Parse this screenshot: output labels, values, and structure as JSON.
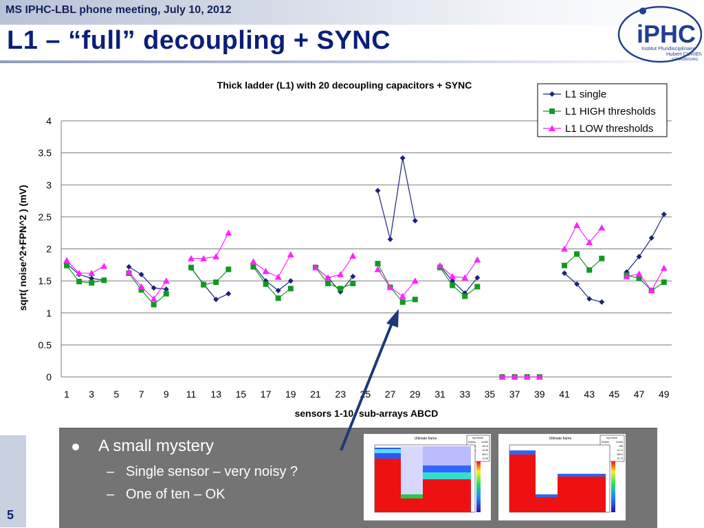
{
  "header": {
    "text": "MS   IPHC-LBL phone meeting, July 10, 2012"
  },
  "title": "L1 – “full” decoupling + SYNC",
  "logo": {
    "main": "iPHC",
    "line1": "Institut Pluridisciplinaire",
    "line2": "Hubert CURIEN",
    "line3": "STRASBOURG"
  },
  "page_number": "5",
  "bullets": {
    "main": "A small mystery",
    "sub": [
      "Single sensor – very noisy ?",
      "One of ten – OK"
    ]
  },
  "thumbnails": {
    "left": {
      "title": "Ultimate frame",
      "stats_title": "my frame",
      "stats_labels": [
        "Entries",
        "Mean x",
        "Mean y",
        "RMS x",
        "RMS y"
      ],
      "stats_values": [
        "31200",
        "431.6",
        "15.95",
        "309.2",
        "11.05"
      ]
    },
    "right": {
      "title": "Ultimate frame",
      "stats_title": "my frame",
      "stats_labels": [
        "Entries",
        "Mean x",
        "Mean y",
        "RMS x",
        "RMS y"
      ],
      "stats_values": [
        "31200",
        "435",
        "14.72",
        "285.9",
        "10.73"
      ]
    }
  },
  "colors": {
    "single": "#1a237e",
    "high": "#119922",
    "low": "#ff22ff",
    "arrow": "#1c3a78",
    "bottom_box": "#747474"
  },
  "chart_data": {
    "type": "line",
    "title": "Thick ladder (L1) with 20 decoupling capacitors + SYNC",
    "xlabel": "sensors 1-10, sub-arrays ABCD",
    "ylabel": "sqrt( noise^2+FPN^2 ) (mV)",
    "ylim": [
      0,
      4
    ],
    "yticks": [
      "0",
      "0.5",
      "1",
      "1.5",
      "2",
      "2.5",
      "3",
      "3.5",
      "4"
    ],
    "xticks": [
      "1",
      "3",
      "5",
      "7",
      "9",
      "11",
      "13",
      "15",
      "17",
      "19",
      "21",
      "23",
      "25",
      "27",
      "29",
      "31",
      "33",
      "35",
      "37",
      "39",
      "41",
      "43",
      "45",
      "47",
      "49"
    ],
    "x_range": [
      1,
      50
    ],
    "legend_position": "top-right",
    "grid": "horizontal",
    "series": [
      {
        "name": "L1 single",
        "marker": "diamond",
        "segments": [
          [
            [
              1,
              1.77
            ],
            [
              2,
              1.6
            ],
            [
              3,
              1.54
            ],
            [
              4,
              1.51
            ]
          ],
          [
            [
              6,
              1.72
            ],
            [
              7,
              1.6
            ],
            [
              8,
              1.39
            ],
            [
              9,
              1.37
            ]
          ],
          [
            [
              11,
              1.7
            ],
            [
              12,
              1.45
            ],
            [
              13,
              1.21
            ],
            [
              14,
              1.3
            ]
          ],
          [
            [
              16,
              1.75
            ],
            [
              17,
              1.5
            ],
            [
              18,
              1.35
            ],
            [
              19,
              1.5
            ]
          ],
          [
            [
              21,
              1.71
            ],
            [
              22,
              1.55
            ],
            [
              23,
              1.33
            ],
            [
              24,
              1.57
            ]
          ],
          [
            [
              26,
              2.91
            ],
            [
              27,
              2.15
            ],
            [
              28,
              3.42
            ],
            [
              29,
              2.44
            ]
          ],
          [
            [
              31,
              1.73
            ],
            [
              32,
              1.5
            ],
            [
              33,
              1.31
            ],
            [
              34,
              1.55
            ]
          ],
          [
            [
              41,
              1.62
            ],
            [
              42,
              1.45
            ],
            [
              43,
              1.22
            ],
            [
              44,
              1.17
            ]
          ],
          [
            [
              46,
              1.64
            ],
            [
              47,
              1.88
            ],
            [
              48,
              2.17
            ],
            [
              49,
              2.54
            ]
          ]
        ]
      },
      {
        "name": "L1 HIGH thresholds",
        "marker": "square",
        "segments": [
          [
            [
              1,
              1.74
            ],
            [
              2,
              1.49
            ],
            [
              3,
              1.47
            ],
            [
              4,
              1.51
            ]
          ],
          [
            [
              6,
              1.62
            ],
            [
              7,
              1.36
            ],
            [
              8,
              1.13
            ],
            [
              9,
              1.3
            ]
          ],
          [
            [
              11,
              1.71
            ],
            [
              12,
              1.44
            ],
            [
              13,
              1.48
            ],
            [
              14,
              1.68
            ]
          ],
          [
            [
              16,
              1.72
            ],
            [
              17,
              1.45
            ],
            [
              18,
              1.23
            ],
            [
              19,
              1.38
            ]
          ],
          [
            [
              21,
              1.71
            ],
            [
              22,
              1.46
            ],
            [
              23,
              1.38
            ],
            [
              24,
              1.46
            ]
          ],
          [
            [
              26,
              1.77
            ],
            [
              27,
              1.4
            ],
            [
              28,
              1.17
            ],
            [
              29,
              1.21
            ]
          ],
          [
            [
              31,
              1.71
            ],
            [
              32,
              1.43
            ],
            [
              33,
              1.26
            ],
            [
              34,
              1.41
            ]
          ],
          [
            [
              36,
              0
            ],
            [
              37,
              0
            ],
            [
              38,
              0
            ],
            [
              39,
              0
            ]
          ],
          [
            [
              41,
              1.74
            ],
            [
              42,
              1.92
            ],
            [
              43,
              1.67
            ],
            [
              44,
              1.85
            ]
          ],
          [
            [
              46,
              1.59
            ],
            [
              47,
              1.54
            ],
            [
              48,
              1.35
            ],
            [
              49,
              1.48
            ]
          ]
        ]
      },
      {
        "name": "L1 LOW thresholds",
        "marker": "triangle",
        "segments": [
          [
            [
              1,
              1.82
            ],
            [
              2,
              1.62
            ],
            [
              3,
              1.62
            ],
            [
              4,
              1.73
            ]
          ],
          [
            [
              6,
              1.64
            ],
            [
              7,
              1.41
            ],
            [
              8,
              1.22
            ],
            [
              9,
              1.5
            ]
          ],
          [
            [
              11,
              1.85
            ],
            [
              12,
              1.85
            ],
            [
              13,
              1.88
            ],
            [
              14,
              2.25
            ]
          ],
          [
            [
              16,
              1.8
            ],
            [
              17,
              1.65
            ],
            [
              18,
              1.56
            ],
            [
              19,
              1.91
            ]
          ],
          [
            [
              21,
              1.71
            ],
            [
              22,
              1.55
            ],
            [
              23,
              1.6
            ],
            [
              24,
              1.89
            ]
          ],
          [
            [
              26,
              1.68
            ],
            [
              27,
              1.4
            ],
            [
              28,
              1.26
            ],
            [
              29,
              1.5
            ]
          ],
          [
            [
              31,
              1.74
            ],
            [
              32,
              1.57
            ],
            [
              33,
              1.55
            ],
            [
              34,
              1.83
            ]
          ],
          [
            [
              36,
              0
            ],
            [
              37,
              0
            ],
            [
              38,
              0
            ],
            [
              39,
              0
            ]
          ],
          [
            [
              41,
              2.0
            ],
            [
              42,
              2.37
            ],
            [
              43,
              2.1
            ],
            [
              44,
              2.33
            ]
          ],
          [
            [
              46,
              1.57
            ],
            [
              47,
              1.61
            ],
            [
              48,
              1.35
            ],
            [
              49,
              1.7
            ]
          ]
        ]
      }
    ]
  }
}
